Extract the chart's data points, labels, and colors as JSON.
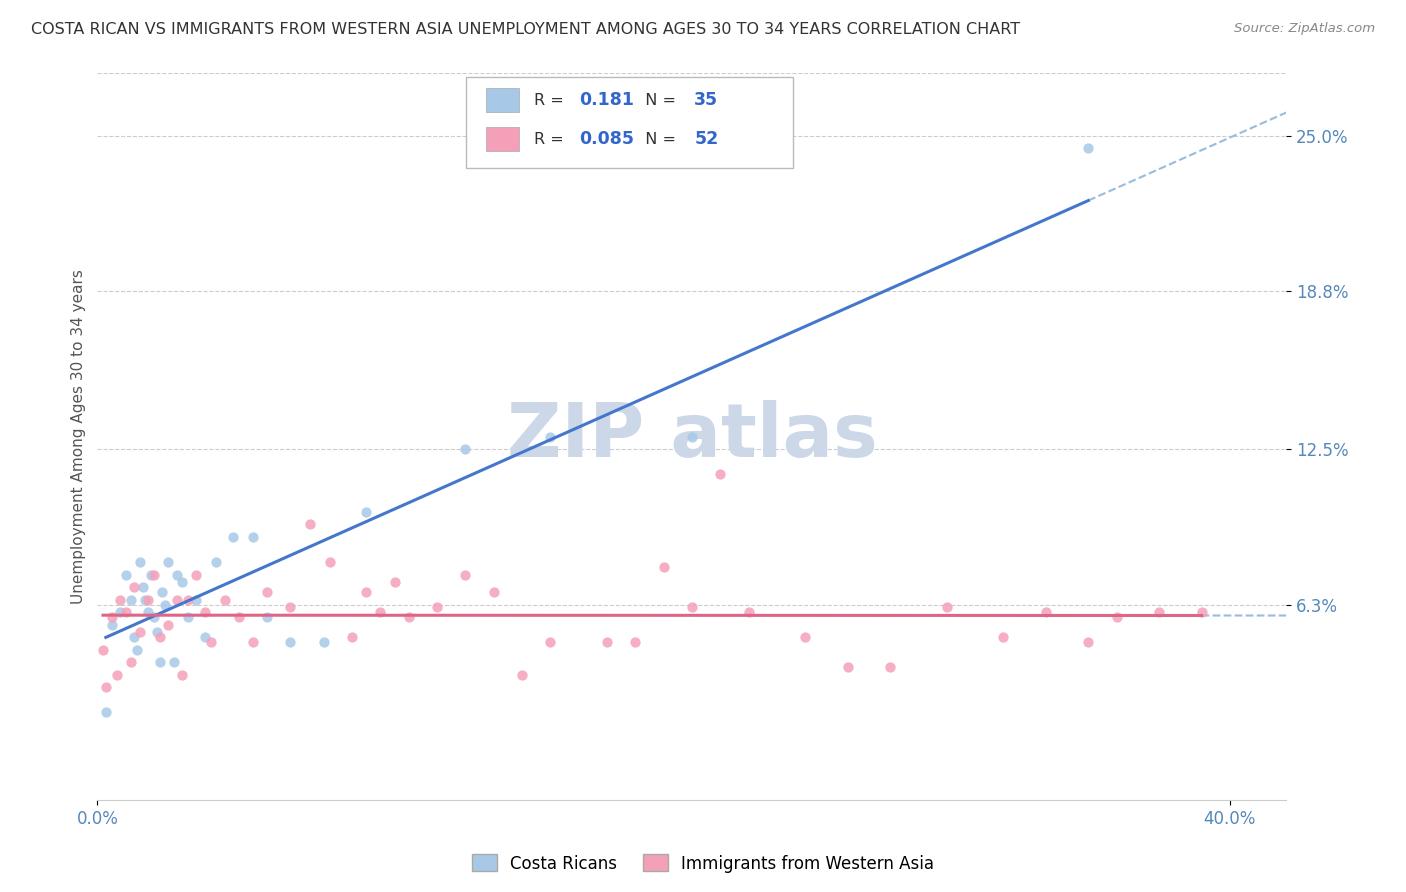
{
  "title": "COSTA RICAN VS IMMIGRANTS FROM WESTERN ASIA UNEMPLOYMENT AMONG AGES 30 TO 34 YEARS CORRELATION CHART",
  "source": "Source: ZipAtlas.com",
  "ylabel": "Unemployment Among Ages 30 to 34 years",
  "xlim": [
    0.0,
    0.42
  ],
  "ylim": [
    -0.015,
    0.275
  ],
  "ytick_labels": [
    "6.3%",
    "12.5%",
    "18.8%",
    "25.0%"
  ],
  "ytick_values": [
    0.063,
    0.125,
    0.188,
    0.25
  ],
  "r_costa": 0.181,
  "n_costa": 35,
  "r_western": 0.085,
  "n_western": 52,
  "costa_color": "#a8c8e8",
  "western_color": "#f4a0b8",
  "trendline_costa_color": "#4477cc",
  "trendline_western_color": "#dd6688",
  "dashed_line_color": "#99bbdd",
  "background_color": "#ffffff",
  "grid_color": "#cccccc",
  "watermark_color": "#ccd8e8",
  "costa_ricans_x": [
    0.003,
    0.005,
    0.008,
    0.01,
    0.012,
    0.013,
    0.014,
    0.015,
    0.016,
    0.017,
    0.018,
    0.019,
    0.02,
    0.021,
    0.022,
    0.023,
    0.024,
    0.025,
    0.027,
    0.028,
    0.03,
    0.032,
    0.035,
    0.038,
    0.042,
    0.048,
    0.055,
    0.06,
    0.068,
    0.08,
    0.095,
    0.13,
    0.16,
    0.21,
    0.35
  ],
  "costa_ricans_y": [
    0.02,
    0.055,
    0.06,
    0.075,
    0.065,
    0.05,
    0.045,
    0.08,
    0.07,
    0.065,
    0.06,
    0.075,
    0.058,
    0.052,
    0.04,
    0.068,
    0.063,
    0.08,
    0.04,
    0.075,
    0.072,
    0.058,
    0.065,
    0.05,
    0.08,
    0.09,
    0.09,
    0.058,
    0.048,
    0.048,
    0.1,
    0.125,
    0.13,
    0.13,
    0.245
  ],
  "western_asia_x": [
    0.002,
    0.003,
    0.005,
    0.007,
    0.008,
    0.01,
    0.012,
    0.013,
    0.015,
    0.018,
    0.02,
    0.022,
    0.025,
    0.028,
    0.03,
    0.032,
    0.035,
    0.038,
    0.04,
    0.045,
    0.05,
    0.055,
    0.06,
    0.068,
    0.075,
    0.082,
    0.09,
    0.095,
    0.1,
    0.105,
    0.11,
    0.12,
    0.13,
    0.14,
    0.15,
    0.16,
    0.18,
    0.19,
    0.2,
    0.21,
    0.22,
    0.23,
    0.25,
    0.265,
    0.28,
    0.3,
    0.32,
    0.335,
    0.35,
    0.36,
    0.375,
    0.39
  ],
  "western_asia_y": [
    0.045,
    0.03,
    0.058,
    0.035,
    0.065,
    0.06,
    0.04,
    0.07,
    0.052,
    0.065,
    0.075,
    0.05,
    0.055,
    0.065,
    0.035,
    0.065,
    0.075,
    0.06,
    0.048,
    0.065,
    0.058,
    0.048,
    0.068,
    0.062,
    0.095,
    0.08,
    0.05,
    0.068,
    0.06,
    0.072,
    0.058,
    0.062,
    0.075,
    0.068,
    0.035,
    0.048,
    0.048,
    0.048,
    0.078,
    0.062,
    0.115,
    0.06,
    0.05,
    0.038,
    0.038,
    0.062,
    0.05,
    0.06,
    0.048,
    0.058,
    0.06,
    0.06
  ]
}
